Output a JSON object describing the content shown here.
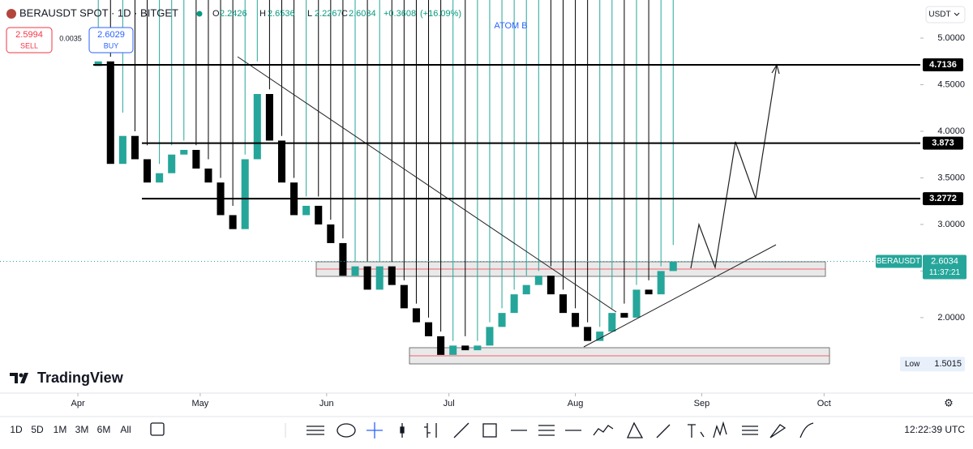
{
  "header": {
    "symbol": "BERAUSDT SPOT · 1D · BITGET",
    "ohlc": [
      {
        "label": "O",
        "value": 2.2426
      },
      {
        "label": "H",
        "value": 2.6536
      },
      {
        "label": "L",
        "value": 2.2267
      },
      {
        "label": "C",
        "value": 2.6034
      }
    ],
    "change": 0.3608,
    "change_label": "+0.3608",
    "change_pct": "(+16.09%)",
    "sell": {
      "price": 2.5994,
      "label": "SELL"
    },
    "spread": 0.0035,
    "buy": {
      "price": 2.6029,
      "label": "BUY"
    },
    "currency": "USDT"
  },
  "annotation": "ATOM B",
  "chart_data": {
    "type": "candlestick",
    "x": [
      5,
      8,
      11,
      14,
      17,
      20,
      23,
      26,
      29,
      32,
      35,
      38,
      41,
      44,
      47,
      50,
      53,
      56,
      59,
      62,
      65,
      68,
      71,
      74,
      77,
      80,
      83,
      86,
      89,
      92,
      95,
      98,
      101,
      104,
      107,
      110,
      113,
      116,
      119,
      122,
      125,
      128,
      131,
      134,
      137,
      140,
      143,
      146
    ],
    "open": [
      4.7,
      4.75,
      3.65,
      3.95,
      3.7,
      3.45,
      3.55,
      3.75,
      3.8,
      3.6,
      3.45,
      3.1,
      2.95,
      3.7,
      4.4,
      3.9,
      3.45,
      3.1,
      3.2,
      3.0,
      2.8,
      2.45,
      2.55,
      2.3,
      2.55,
      2.35,
      2.1,
      1.95,
      1.8,
      1.6,
      1.7,
      1.65,
      1.7,
      1.9,
      2.05,
      2.25,
      2.35,
      2.45,
      2.25,
      2.05,
      1.9,
      1.75,
      1.85,
      2.05,
      2.0,
      2.3,
      2.25,
      2.5
    ],
    "high": [
      4.95,
      4.8,
      4.2,
      4.0,
      3.85,
      3.65,
      3.85,
      3.9,
      3.85,
      3.7,
      3.5,
      3.2,
      3.75,
      4.75,
      4.45,
      3.95,
      3.5,
      3.3,
      3.3,
      3.05,
      2.85,
      2.6,
      2.6,
      2.6,
      2.6,
      2.4,
      2.15,
      2.0,
      1.85,
      1.75,
      1.8,
      1.75,
      1.95,
      2.1,
      2.3,
      2.45,
      2.5,
      2.55,
      2.3,
      2.1,
      1.95,
      1.9,
      2.1,
      2.15,
      2.35,
      2.4,
      2.55,
      2.78
    ],
    "low": {
      "label": "Low",
      "value": 1.5015
    },
    "close": [
      4.75,
      3.65,
      3.95,
      3.7,
      3.45,
      3.55,
      3.75,
      3.8,
      3.6,
      3.45,
      3.1,
      2.95,
      3.7,
      4.4,
      3.9,
      3.45,
      3.1,
      3.2,
      3.0,
      2.8,
      2.45,
      2.55,
      2.3,
      2.55,
      2.35,
      2.1,
      1.95,
      1.8,
      1.6,
      1.7,
      1.65,
      1.7,
      1.9,
      2.05,
      2.25,
      2.35,
      2.45,
      2.25,
      2.05,
      1.9,
      1.75,
      1.85,
      2.05,
      2.0,
      2.3,
      2.25,
      2.5,
      2.6
    ],
    "up_color": "#26a69a",
    "down_color": "#000000",
    "xlim": [
      -19.1,
      206.6
    ],
    "xticks": [
      {
        "value": 0,
        "label": "Apr"
      },
      {
        "value": 30,
        "label": "May"
      },
      {
        "value": 61,
        "label": "Jun"
      },
      {
        "value": 91,
        "label": "Jul"
      },
      {
        "value": 122,
        "label": "Aug"
      },
      {
        "value": 153,
        "label": "Sep"
      },
      {
        "value": 183,
        "label": "Oct"
      }
    ],
    "ylim": [
      1.19,
      5.409
    ],
    "yticks": [
      {
        "value": 2,
        "label": "2.0000"
      },
      {
        "value": 2.5,
        "label": "2.5000"
      },
      {
        "value": 3,
        "label": "3.0000"
      },
      {
        "value": 3.5,
        "label": "3.5000"
      },
      {
        "value": 4,
        "label": "4.0000"
      },
      {
        "value": 4.5,
        "label": "4.5000"
      },
      {
        "value": 5,
        "label": "5.0000"
      }
    ],
    "levels": [
      4.7136,
      3.873,
      3.2772
    ],
    "last": {
      "symbol": "BERAUSDT",
      "price": 2.6034,
      "countdown": "11:37:21"
    }
  },
  "brand": "TradingView",
  "toolbar": {
    "intervals": [
      "1D",
      "5D",
      "1M",
      "3M",
      "6M",
      "All"
    ],
    "clock": "12:22:39 UTC"
  }
}
